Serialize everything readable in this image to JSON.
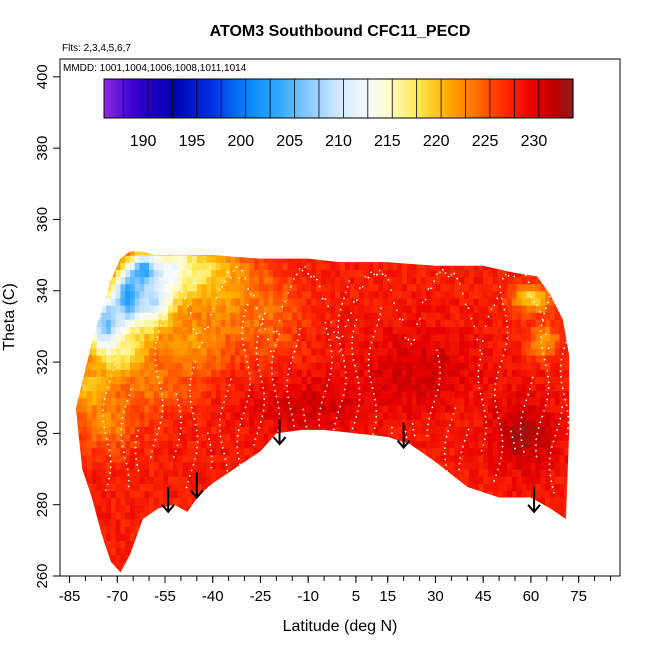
{
  "chart_data": {
    "type": "heatmap",
    "title": "ATOM3 Southbound CFC11_PECD",
    "subtitle_flights": "Flts: 2,3,4,5,6,7",
    "subtitle_dates": "MMDD: 1001,1004,1006,1008,1011,1014",
    "xlabel": "Latitude (deg N)",
    "ylabel": "Theta (C)",
    "xlim": [
      -88,
      88
    ],
    "ylim": [
      260,
      405
    ],
    "x_ticks": [
      -85,
      -70,
      -55,
      -40,
      -25,
      -10,
      5,
      15,
      30,
      45,
      60,
      75
    ],
    "x_minor_step": 5,
    "y_ticks": [
      260,
      280,
      300,
      320,
      340,
      360,
      380,
      400
    ],
    "colorbar": {
      "min": 186,
      "max": 234,
      "ticks": [
        190,
        195,
        200,
        205,
        210,
        215,
        220,
        225,
        230
      ],
      "stops": [
        {
          "v": 186,
          "c": "#8a2be2"
        },
        {
          "v": 189,
          "c": "#3a00d0"
        },
        {
          "v": 193,
          "c": "#0000b0"
        },
        {
          "v": 197,
          "c": "#0030e0"
        },
        {
          "v": 201,
          "c": "#0a8cff"
        },
        {
          "v": 204,
          "c": "#33aaff"
        },
        {
          "v": 207,
          "c": "#8ccaff"
        },
        {
          "v": 210,
          "c": "#cfe8ff"
        },
        {
          "v": 213,
          "c": "#f5fbff"
        },
        {
          "v": 215,
          "c": "#fffbd0"
        },
        {
          "v": 218,
          "c": "#ffeb55"
        },
        {
          "v": 221,
          "c": "#ffb000"
        },
        {
          "v": 224,
          "c": "#ff7000"
        },
        {
          "v": 227,
          "c": "#ff2a00"
        },
        {
          "v": 230,
          "c": "#e60000"
        },
        {
          "v": 232,
          "c": "#c20000"
        },
        {
          "v": 234,
          "c": "#8b1a1a"
        }
      ]
    },
    "field": {
      "background_value": 228,
      "upper_envelope": [
        [
          -83,
          307
        ],
        [
          -80,
          318
        ],
        [
          -77,
          329
        ],
        [
          -74,
          337
        ],
        [
          -72,
          343
        ],
        [
          -69,
          349
        ],
        [
          -66,
          351
        ],
        [
          -62,
          351
        ],
        [
          -58,
          350
        ],
        [
          -50,
          350
        ],
        [
          -40,
          350
        ],
        [
          -25,
          349
        ],
        [
          -10,
          349
        ],
        [
          0,
          348
        ],
        [
          15,
          348
        ],
        [
          30,
          347
        ],
        [
          45,
          347
        ],
        [
          55,
          345
        ],
        [
          62,
          344
        ],
        [
          66,
          339
        ],
        [
          70,
          332
        ],
        [
          72,
          322
        ],
        [
          72,
          300
        ],
        [
          71,
          276
        ]
      ],
      "lower_envelope": [
        [
          -83,
          307
        ],
        [
          -81,
          290
        ],
        [
          -78,
          282
        ],
        [
          -75,
          272
        ],
        [
          -72,
          264
        ],
        [
          -69,
          261
        ],
        [
          -66,
          266
        ],
        [
          -62,
          276
        ],
        [
          -57,
          279
        ],
        [
          -52,
          280
        ],
        [
          -48,
          278
        ],
        [
          -44,
          283
        ],
        [
          -40,
          286
        ],
        [
          -35,
          289
        ],
        [
          -30,
          292
        ],
        [
          -25,
          295
        ],
        [
          -20,
          300
        ],
        [
          -12,
          301
        ],
        [
          -5,
          301
        ],
        [
          5,
          300
        ],
        [
          15,
          299
        ],
        [
          22,
          297
        ],
        [
          30,
          292
        ],
        [
          40,
          285
        ],
        [
          50,
          282
        ],
        [
          60,
          282
        ],
        [
          66,
          279
        ],
        [
          71,
          276
        ]
      ],
      "blobs": [
        {
          "lat": -66,
          "theta": 338,
          "value": 199,
          "rlat": 5,
          "rtheta": 8
        },
        {
          "lat": -61,
          "theta": 345,
          "value": 199,
          "rlat": 5,
          "rtheta": 5
        },
        {
          "lat": -73,
          "theta": 330,
          "value": 203,
          "rlat": 6,
          "rtheta": 9
        },
        {
          "lat": -58,
          "theta": 337,
          "value": 207,
          "rlat": 7,
          "rtheta": 9
        },
        {
          "lat": -51,
          "theta": 345,
          "value": 209,
          "rlat": 8,
          "rtheta": 6
        },
        {
          "lat": -44,
          "theta": 345,
          "value": 216,
          "rlat": 9,
          "rtheta": 6
        },
        {
          "lat": -67,
          "theta": 322,
          "value": 215,
          "rlat": 8,
          "rtheta": 8
        },
        {
          "lat": -36,
          "theta": 340,
          "value": 219,
          "rlat": 10,
          "rtheta": 10
        },
        {
          "lat": -47,
          "theta": 326,
          "value": 222,
          "rlat": 12,
          "rtheta": 10
        },
        {
          "lat": -78,
          "theta": 312,
          "value": 219,
          "rlat": 6,
          "rtheta": 8
        },
        {
          "lat": -73,
          "theta": 304,
          "value": 223,
          "rlat": 9,
          "rtheta": 9
        },
        {
          "lat": -25,
          "theta": 334,
          "value": 224,
          "rlat": 13,
          "rtheta": 13
        },
        {
          "lat": -58,
          "theta": 314,
          "value": 224,
          "rlat": 12,
          "rtheta": 9
        },
        {
          "lat": 60,
          "theta": 338,
          "value": 219,
          "rlat": 6,
          "rtheta": 4
        },
        {
          "lat": 64,
          "theta": 326,
          "value": 222,
          "rlat": 5,
          "rtheta": 5
        },
        {
          "lat": 58,
          "theta": 300,
          "value": 233,
          "rlat": 10,
          "rtheta": 10
        },
        {
          "lat": 25,
          "theta": 318,
          "value": 231,
          "rlat": 20,
          "rtheta": 12
        },
        {
          "lat": -10,
          "theta": 308,
          "value": 231,
          "rlat": 20,
          "rtheta": 8
        }
      ]
    },
    "arrows": [
      {
        "lat": -54,
        "theta": 285
      },
      {
        "lat": -45,
        "theta": 289
      },
      {
        "lat": -19,
        "theta": 304
      },
      {
        "lat": 20,
        "theta": 303
      },
      {
        "lat": 61,
        "theta": 285
      }
    ],
    "white_dot_color": "#ffffff",
    "arrow_color": "#000000"
  }
}
